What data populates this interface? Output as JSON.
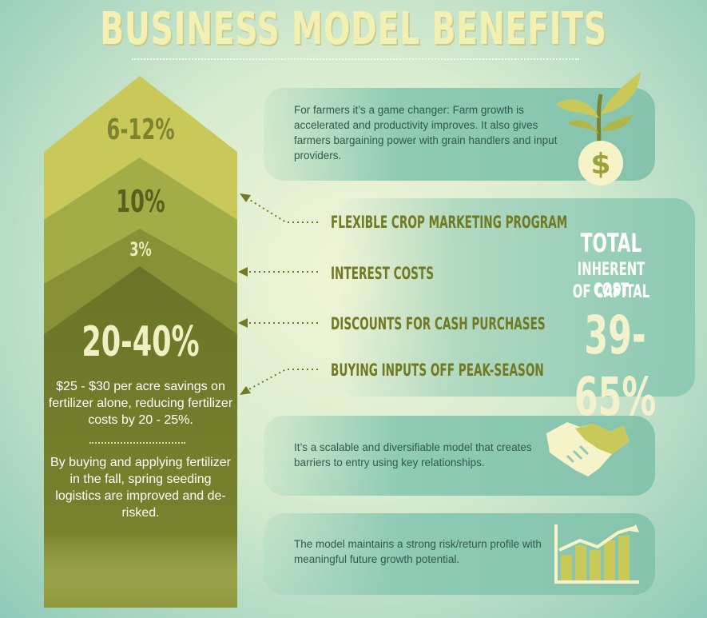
{
  "title": "BUSINESS MODEL BENEFITS",
  "levels": [
    {
      "value": "6-12%"
    },
    {
      "value": "10%"
    },
    {
      "value": "3%"
    },
    {
      "value": "20-40%"
    }
  ],
  "column_text": {
    "savings": "$25 - $30 per acre savings on fertilizer alone, reducing fertilizer costs by 20 - 25%.",
    "logistics": "By buying and applying fertilizer in the fall, spring seeding logistics are improved and de-risked."
  },
  "arrow_labels": [
    "FLEXIBLE CROP MARKETING PROGRAM",
    "INTEREST COSTS",
    "DISCOUNTS FOR CASH PURCHASES",
    "BUYING INPUTS OFF PEAK-SEASON"
  ],
  "total": {
    "line1": "TOTAL",
    "line2": "INHERENT COST",
    "line3": "OF CAPITAL",
    "value": "39-65%"
  },
  "panels": {
    "farmers": "For farmers it’s a game changer: Farm growth is accelerated and productivity improves. It also gives farmers bargaining power with grain handlers and input providers.",
    "scalable": "It’s a scalable and diversifiable model that creates barriers to entry using key relationships.",
    "risk": "The model maintains a strong risk/return profile with meaningful future growth potential."
  },
  "icons": {
    "plant": "money-plant-icon",
    "handshake": "handshake-icon",
    "growth": "growth-chart-icon"
  },
  "colors": {
    "band1": "#c9c95a",
    "band2": "#a3ad48",
    "band3": "#889135",
    "band4": "#6b7427",
    "panel": "#8ecab4",
    "label": "#717a22"
  }
}
